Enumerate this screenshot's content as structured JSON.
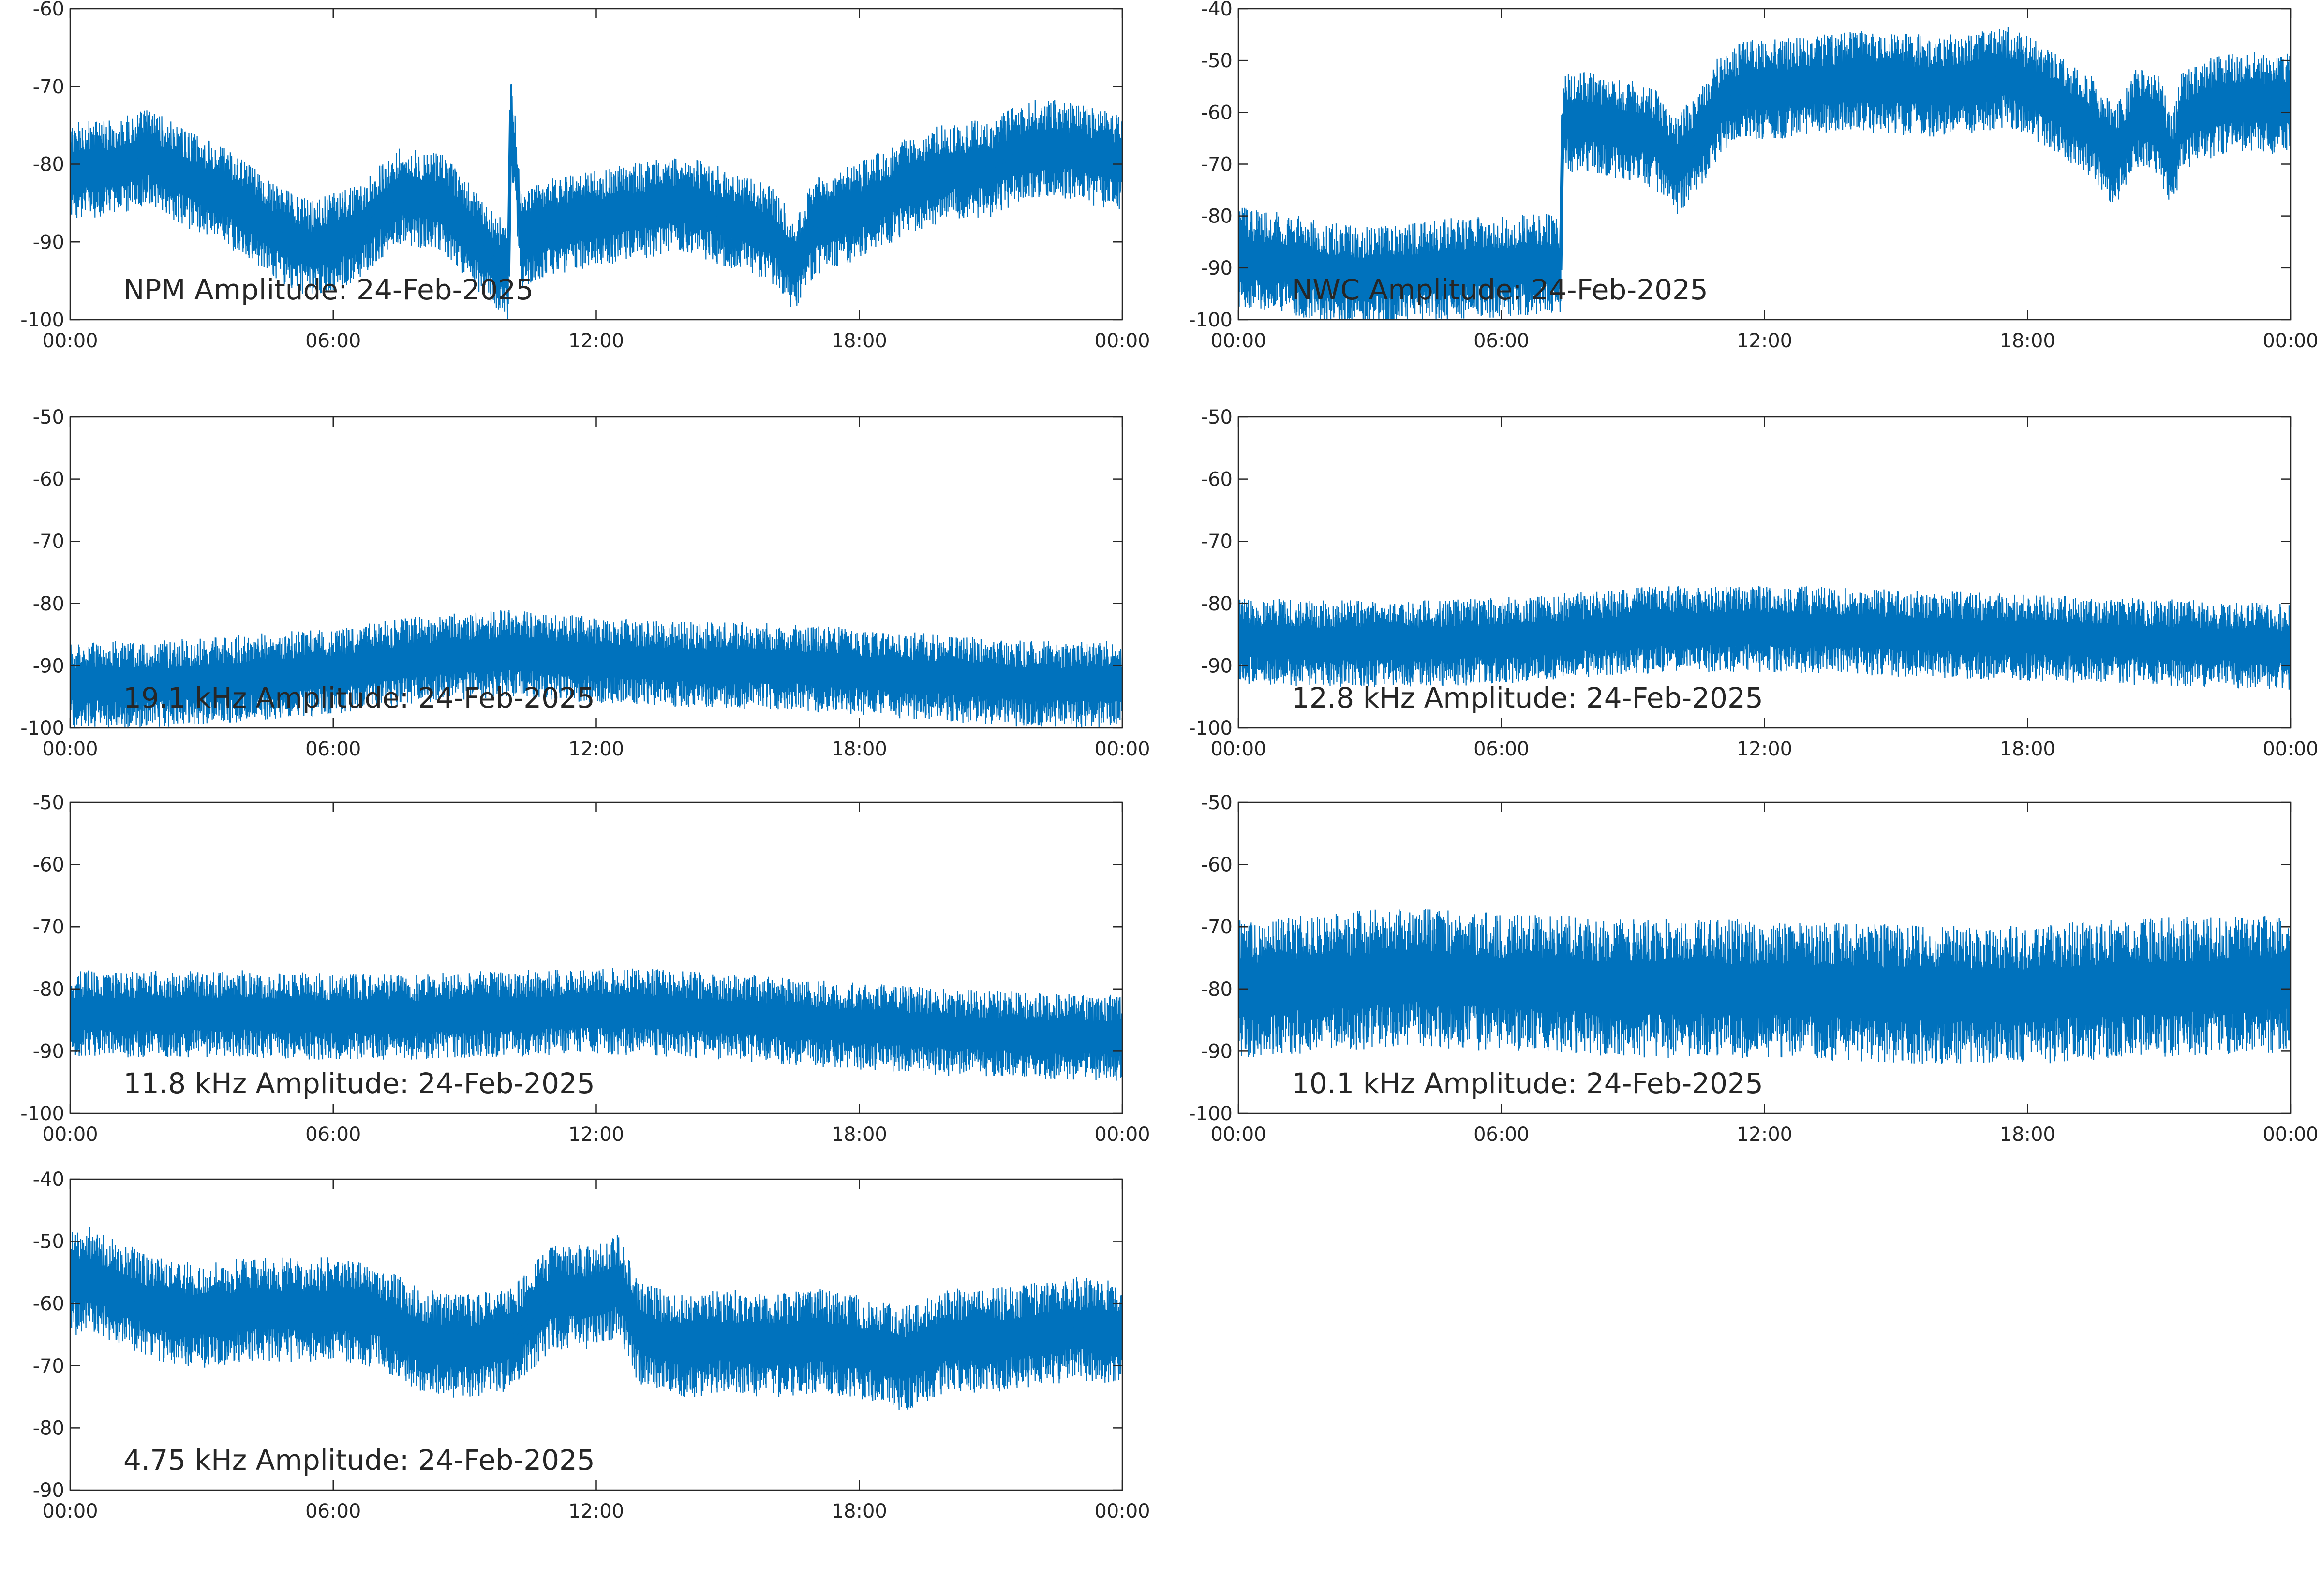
{
  "line_color": "#0072bd",
  "axis_color": "#262626",
  "x_tick_labels": [
    "00:00",
    "06:00",
    "12:00",
    "18:00",
    "00:00"
  ],
  "chart_data": [
    {
      "type": "line",
      "title": "NPM Amplitude: 24-Feb-2025",
      "x_unit": "hours",
      "xlim": [
        0,
        24
      ],
      "ylim": [
        -100,
        -60
      ],
      "y_ticks": [
        -60,
        -70,
        -80,
        -90,
        -100
      ],
      "series": [
        {
          "x": [
            0,
            1,
            1.8,
            2.5,
            3.5,
            4.5,
            5.5,
            6.5,
            7.5,
            8.5,
            9.3,
            10.0,
            10.05,
            10.3,
            11,
            12,
            13,
            14,
            15,
            16,
            16.5,
            17,
            18,
            19,
            20,
            21,
            21.5,
            22,
            22.5,
            23,
            24
          ],
          "y": [
            -80.8,
            -80.5,
            -79.0,
            -81.5,
            -84,
            -88,
            -91,
            -89,
            -84,
            -85,
            -90,
            -94,
            -73,
            -90,
            -88,
            -87,
            -86,
            -85,
            -87,
            -89,
            -93,
            -88,
            -86,
            -83,
            -81,
            -80.5,
            -79,
            -78,
            -78,
            -78.5,
            -80
          ]
        }
      ]
    },
    {
      "type": "line",
      "title": "NWC Amplitude: 24-Feb-2025",
      "x_unit": "hours",
      "xlim": [
        0,
        24
      ],
      "ylim": [
        -100,
        -40
      ],
      "y_ticks": [
        -40,
        -50,
        -60,
        -70,
        -80,
        -90,
        -100
      ],
      "series": [
        {
          "x": [
            0,
            1,
            2,
            3,
            4,
            5,
            6,
            7,
            7.35,
            7.4,
            7.6,
            8,
            8.5,
            9,
            9.5,
            10,
            10.5,
            11,
            11.5,
            12,
            13,
            14,
            15,
            16,
            17,
            17.5,
            18,
            18.5,
            19,
            19.5,
            20,
            20.5,
            21,
            21.3,
            21.5,
            22,
            23,
            24
          ],
          "y": [
            -88,
            -89,
            -91,
            -92,
            -91,
            -90,
            -90,
            -89,
            -90,
            -61,
            -62,
            -62,
            -63,
            -63.5,
            -65,
            -70,
            -66,
            -58,
            -56,
            -55.5,
            -55,
            -54,
            -54.5,
            -55,
            -54,
            -53,
            -55,
            -57,
            -60,
            -63,
            -69,
            -61,
            -62,
            -71,
            -62,
            -59.5,
            -58,
            -58.5
          ]
        }
      ]
    },
    {
      "type": "line",
      "title": "19.1 kHz Amplitude: 24-Feb-2025",
      "x_unit": "hours",
      "xlim": [
        0,
        24
      ],
      "ylim": [
        -100,
        -50
      ],
      "y_ticks": [
        -50,
        -60,
        -70,
        -80,
        -90,
        -100
      ],
      "series": [
        {
          "x": [
            0,
            2,
            4,
            6,
            8,
            10,
            12,
            14,
            16,
            18,
            20,
            22,
            24
          ],
          "y": [
            -93,
            -93,
            -92,
            -91,
            -89,
            -88,
            -89,
            -90,
            -90,
            -91,
            -92,
            -93,
            -93
          ]
        }
      ]
    },
    {
      "type": "line",
      "title": "12.8 kHz Amplitude: 24-Feb-2025",
      "x_unit": "hours",
      "xlim": [
        0,
        24
      ],
      "ylim": [
        -100,
        -50
      ],
      "y_ticks": [
        -50,
        -60,
        -70,
        -80,
        -90,
        -100
      ],
      "series": [
        {
          "x": [
            0,
            2,
            4,
            6,
            8,
            10,
            12,
            14,
            16,
            18,
            20,
            22,
            24
          ],
          "y": [
            -86,
            -86.5,
            -86.5,
            -86,
            -85,
            -84,
            -84,
            -84.5,
            -85,
            -85.5,
            -86,
            -86.5,
            -87
          ]
        }
      ]
    },
    {
      "type": "line",
      "title": "11.8 kHz Amplitude: 24-Feb-2025",
      "x_unit": "hours",
      "xlim": [
        0,
        24
      ],
      "ylim": [
        -100,
        -50
      ],
      "y_ticks": [
        -50,
        -60,
        -70,
        -80,
        -90,
        -100
      ],
      "series": [
        {
          "x": [
            0,
            2,
            4,
            6,
            8,
            10,
            12,
            14,
            16,
            18,
            20,
            22,
            24
          ],
          "y": [
            -84,
            -84,
            -84,
            -84.5,
            -84.5,
            -84,
            -83.5,
            -84,
            -85,
            -86,
            -87,
            -87.5,
            -88
          ]
        }
      ]
    },
    {
      "type": "line",
      "title": "10.1 kHz Amplitude: 24-Feb-2025",
      "x_unit": "hours",
      "xlim": [
        0,
        24
      ],
      "ylim": [
        -100,
        -50
      ],
      "y_ticks": [
        -50,
        -60,
        -70,
        -80,
        -90,
        -100
      ],
      "series": [
        {
          "x": [
            0,
            2,
            4,
            6,
            8,
            10,
            12,
            14,
            16,
            18,
            20,
            22,
            24
          ],
          "y": [
            -80,
            -79,
            -78,
            -79,
            -79.5,
            -80,
            -80,
            -80.5,
            -81,
            -81,
            -80,
            -79.5,
            -79
          ]
        }
      ]
    },
    {
      "type": "line",
      "title": "4.75 kHz Amplitude: 24-Feb-2025",
      "x_unit": "hours",
      "xlim": [
        0,
        24
      ],
      "ylim": [
        -90,
        -40
      ],
      "y_ticks": [
        -40,
        -50,
        -60,
        -70,
        -80,
        -90
      ],
      "series": [
        {
          "x": [
            0,
            0.5,
            1,
            2,
            3,
            4,
            5,
            6,
            7,
            8,
            9,
            10,
            11,
            12,
            12.5,
            13,
            14,
            15,
            16,
            17,
            18,
            19,
            20,
            21,
            22,
            23,
            24
          ],
          "y": [
            -57,
            -56,
            -58,
            -61,
            -62,
            -61,
            -61,
            -61,
            -62,
            -66,
            -67,
            -66,
            -59,
            -59,
            -57,
            -65,
            -67,
            -66,
            -67,
            -66,
            -67,
            -69,
            -66,
            -66,
            -65,
            -64,
            -65
          ]
        }
      ]
    }
  ]
}
